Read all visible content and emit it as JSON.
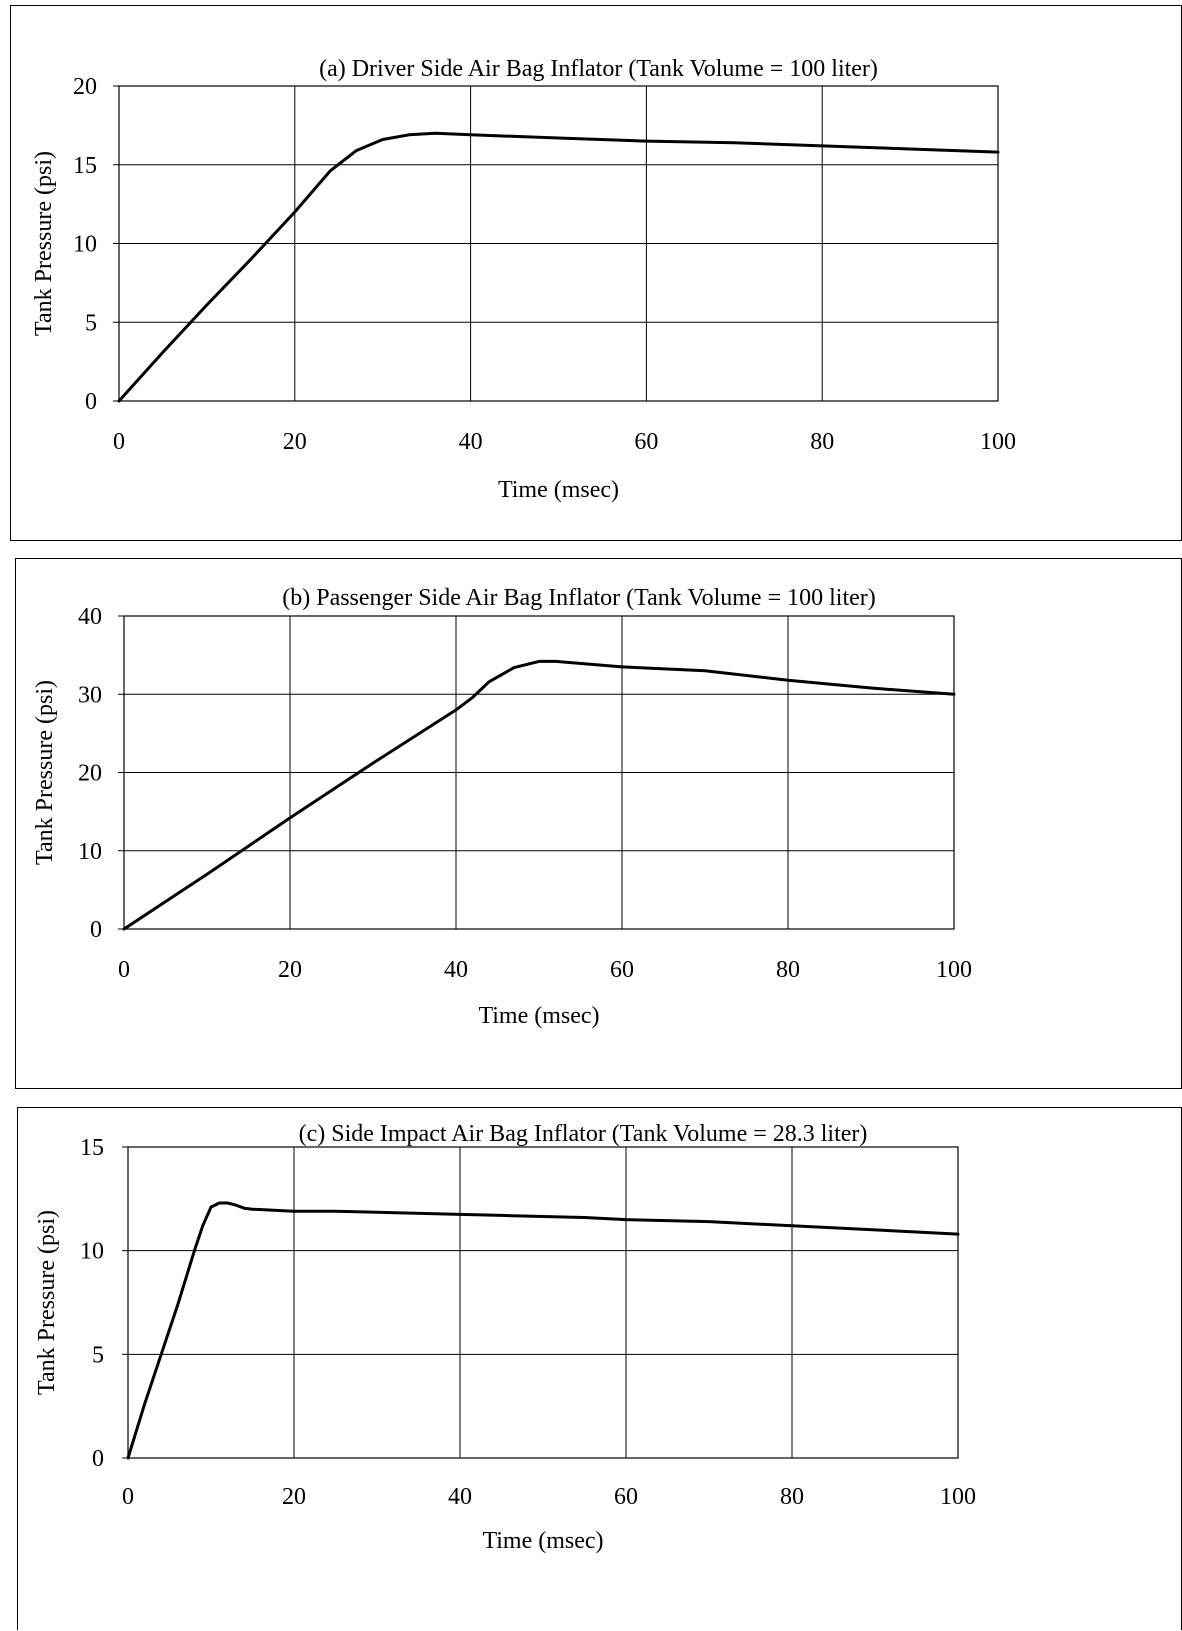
{
  "chart_data": [
    {
      "type": "line",
      "title": "(a) Driver Side Air Bag Inflator (Tank Volume = 100 liter)",
      "xlabel": "Time (msec)",
      "ylabel": "Tank Pressure (psi)",
      "xlim": [
        0,
        100
      ],
      "ylim": [
        0,
        20
      ],
      "xticks": [
        "0",
        "20",
        "40",
        "60",
        "80",
        "100"
      ],
      "yticks": [
        "0",
        "5",
        "10",
        "15",
        "20"
      ],
      "grid": true,
      "series": [
        {
          "x": [
            0,
            5,
            10,
            15,
            20,
            24,
            27,
            30,
            33,
            36,
            40,
            50,
            60,
            70,
            80,
            90,
            100
          ],
          "y": [
            0,
            3.1,
            6.1,
            9.0,
            12.0,
            14.6,
            15.9,
            16.6,
            16.9,
            17.0,
            16.9,
            16.7,
            16.5,
            16.4,
            16.2,
            16.0,
            15.8
          ]
        }
      ]
    },
    {
      "type": "line",
      "title": "(b) Passenger Side Air Bag Inflator (Tank Volume = 100 liter)",
      "xlabel": "Time (msec)",
      "ylabel": "Tank Pressure (psi)",
      "xlim": [
        0,
        100
      ],
      "ylim": [
        0,
        40
      ],
      "xticks": [
        "0",
        "20",
        "40",
        "60",
        "80",
        "100"
      ],
      "yticks": [
        "0",
        "10",
        "20",
        "30",
        "40"
      ],
      "grid": true,
      "series": [
        {
          "x": [
            0,
            10,
            20,
            30,
            40,
            42,
            44,
            47,
            50,
            52,
            60,
            70,
            80,
            90,
            100
          ],
          "y": [
            0,
            7.0,
            14.2,
            21.2,
            28.0,
            29.6,
            31.6,
            33.4,
            34.2,
            34.2,
            33.5,
            33.0,
            31.8,
            30.8,
            30.0
          ]
        }
      ]
    },
    {
      "type": "line",
      "title": "(c) Side Impact Air Bag Inflator (Tank Volume = 28.3 liter)",
      "xlabel": "Time (msec)",
      "ylabel": "Tank Pressure (psi)",
      "xlim": [
        0,
        100
      ],
      "ylim": [
        0,
        15
      ],
      "xticks": [
        "0",
        "20",
        "40",
        "60",
        "80",
        "100"
      ],
      "yticks": [
        "0",
        "5",
        "10",
        "15"
      ],
      "grid": true,
      "series": [
        {
          "x": [
            0,
            2,
            4,
            6,
            8,
            9,
            10,
            11,
            12,
            13,
            14,
            15,
            20,
            25,
            30,
            40,
            45,
            50,
            55,
            60,
            70,
            80,
            90,
            100
          ],
          "y": [
            0,
            2.6,
            5.0,
            7.4,
            10.0,
            11.2,
            12.1,
            12.3,
            12.3,
            12.2,
            12.05,
            12.0,
            11.9,
            11.9,
            11.85,
            11.75,
            11.7,
            11.65,
            11.6,
            11.5,
            11.4,
            11.2,
            11.0,
            10.8
          ]
        }
      ]
    }
  ]
}
